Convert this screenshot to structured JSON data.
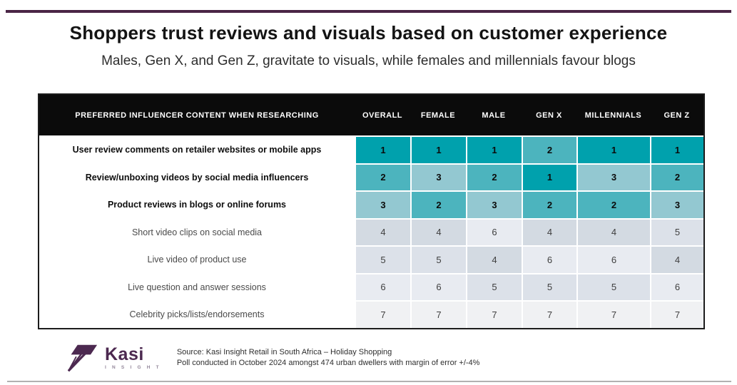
{
  "header": {
    "title": "Shoppers trust reviews and visuals based on customer experience",
    "subtitle": "Males, Gen X, and Gen Z, gravitate to visuals, while females and millennials favour blogs"
  },
  "chart_data": {
    "type": "table",
    "title": "Shoppers trust reviews and visuals based on customer experience",
    "subtitle": "Males, Gen X, and Gen Z, gravitate to visuals, while females and millennials favour blogs",
    "corner_header": "PREFERRED INFLUENCER CONTENT WHEN RESEARCHING",
    "columns": [
      "OVERALL",
      "FEMALE",
      "MALE",
      "GEN X",
      "MILLENNIALS",
      "GEN Z"
    ],
    "rows": [
      {
        "label": "User review comments on retailer websites or mobile apps",
        "ranks": [
          1,
          1,
          1,
          2,
          1,
          1
        ],
        "emphasis": true
      },
      {
        "label": "Review/unboxing videos by social media influencers",
        "ranks": [
          2,
          3,
          2,
          1,
          3,
          2
        ],
        "emphasis": true
      },
      {
        "label": "Product reviews in blogs or online forums",
        "ranks": [
          3,
          2,
          3,
          2,
          2,
          3
        ],
        "emphasis": true
      },
      {
        "label": "Short video clips on social media",
        "ranks": [
          4,
          4,
          6,
          4,
          4,
          5
        ],
        "emphasis": false
      },
      {
        "label": "Live video of product use",
        "ranks": [
          5,
          5,
          4,
          6,
          6,
          4
        ],
        "emphasis": false
      },
      {
        "label": "Live question and answer sessions",
        "ranks": [
          6,
          6,
          5,
          5,
          5,
          6
        ],
        "emphasis": false
      },
      {
        "label": "Celebrity picks/lists/endorsements",
        "ranks": [
          7,
          7,
          7,
          7,
          7,
          7
        ],
        "emphasis": false
      }
    ],
    "rank_colors": {
      "1": "#00A1AD",
      "2": "#4CB4BE",
      "3": "#93C8D1",
      "4": "#D3DAE2",
      "5": "#DCE1E9",
      "6": "#E8EBF1",
      "7": "#F0F1F3"
    },
    "header_bg": "#0B0B0B"
  },
  "footer": {
    "logo_name": "Kasi",
    "logo_sub": "I N S I G H T",
    "source_line1": "Source: Kasi Insight Retail in South Africa – Holiday Shopping",
    "source_line2": "Poll conducted in October 2024 amongst 474 urban dwellers with margin of error +/-4%"
  },
  "colors": {
    "accent_bar": "#4A2545",
    "logo_purple": "#4C2950",
    "bottom_divider": "#B1B1B1"
  }
}
